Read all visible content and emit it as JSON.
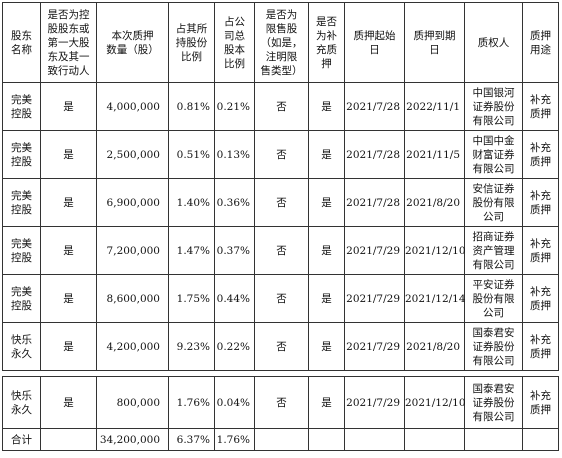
{
  "headers": [
    "股东\n名称",
    "是否为控\n股股东或\n第一大股\n东及其一\n致行动人",
    "本次质押\n数量（股）",
    "占其所\n持股份\n比例",
    "占公\n司总\n股本\n比例",
    "是否为\n限售股\n（如是，\n注明限\n售类型）",
    "是否\n为补\n充质\n押",
    "质押起始\n日",
    "质押到期\n日",
    "质权人",
    "质押\n用途"
  ],
  "rows": [
    {
      "name": "完美\n控股",
      "controlling": "是",
      "qty": "4,000,000",
      "pct_held": "0.81%",
      "pct_total": "0.21%",
      "restricted": "否",
      "supplementary": "是",
      "start": "2021/7/28",
      "end": "2022/11/1",
      "pledgee": "中国银河\n证券股份\n有限公司",
      "purpose": "补充\n质押"
    },
    {
      "name": "完美\n控股",
      "controlling": "是",
      "qty": "2,500,000",
      "pct_held": "0.51%",
      "pct_total": "0.13%",
      "restricted": "否",
      "supplementary": "是",
      "start": "2021/7/28",
      "end": "2021/11/5",
      "pledgee": "中国中金\n财富证券\n有限公司",
      "purpose": "补充\n质押"
    },
    {
      "name": "完美\n控股",
      "controlling": "是",
      "qty": "6,900,000",
      "pct_held": "1.40%",
      "pct_total": "0.36%",
      "restricted": "否",
      "supplementary": "是",
      "start": "2021/7/28",
      "end": "2021/8/20",
      "pledgee": "安信证券\n股份有限\n公司",
      "purpose": "补充\n质押"
    },
    {
      "name": "完美\n控股",
      "controlling": "是",
      "qty": "7,200,000",
      "pct_held": "1.47%",
      "pct_total": "0.37%",
      "restricted": "否",
      "supplementary": "是",
      "start": "2021/7/29",
      "end": "2021/12/10",
      "pledgee": "招商证券\n资产管理\n有限公司",
      "purpose": "补充\n质押"
    },
    {
      "name": "完美\n控股",
      "controlling": "是",
      "qty": "8,600,000",
      "pct_held": "1.75%",
      "pct_total": "0.44%",
      "restricted": "否",
      "supplementary": "是",
      "start": "2021/7/29",
      "end": "2021/12/14",
      "pledgee": "平安证券\n股份有限\n公司",
      "purpose": "补充\n质押"
    },
    {
      "name": "快乐\n永久",
      "controlling": "是",
      "qty": "4,200,000",
      "pct_held": "9.23%",
      "pct_total": "0.22%",
      "restricted": "否",
      "supplementary": "是",
      "start": "2021/7/29",
      "end": "2021/8/20",
      "pledgee": "国泰君安\n证券股份\n有限公司",
      "purpose": "补充\n质押"
    }
  ],
  "cont_row": {
    "name": "快乐\n永久",
    "controlling": "是",
    "qty": "800,000",
    "pct_held": "1.76%",
    "pct_total": "0.04%",
    "restricted": "否",
    "supplementary": "是",
    "start": "2021/7/29",
    "end": "2021/12/10",
    "pledgee": "国泰君安\n证券股份\n有限公司",
    "purpose": "补充\n质押"
  },
  "total_row": {
    "label": "合计",
    "qty": "34,200,000",
    "pct_held": "6.37%",
    "pct_total": "1.76%"
  }
}
